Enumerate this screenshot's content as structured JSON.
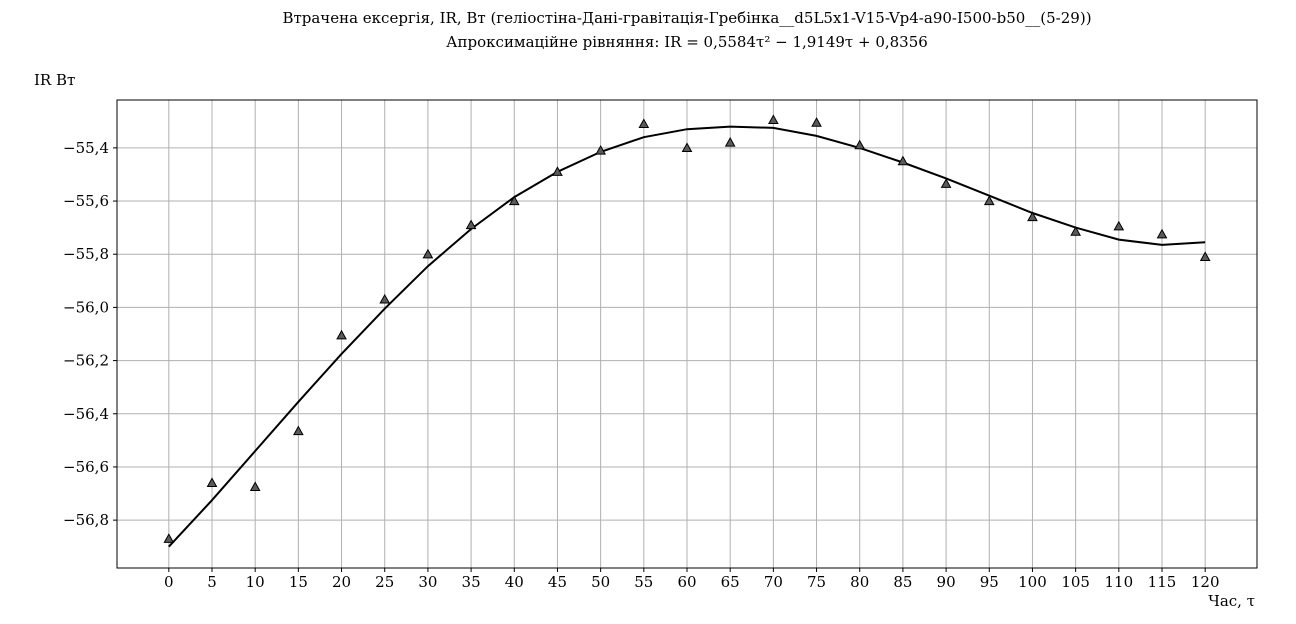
{
  "chart_data": {
    "type": "scatter",
    "title": "Втрачена ексергія, IR, Вт (геліостіна-Дані-гравітація-Гребінка__d5L5x1-V15-Vp4-a90-I500-b50__(5-29))",
    "subtitle": "Апроксимаційне рівняння: IR = 0,5584τ² − 1,9149τ + 0,8356",
    "ylabel": "IR Вт",
    "xlabel": "Час, τ",
    "x_ticks": [
      0,
      5,
      10,
      15,
      20,
      25,
      30,
      35,
      40,
      45,
      50,
      55,
      60,
      65,
      70,
      75,
      80,
      85,
      90,
      95,
      100,
      105,
      110,
      115,
      120
    ],
    "y_ticks": [
      "−55,4",
      "−55,6",
      "−55,8",
      "−56,0",
      "−56,2",
      "−56,4",
      "−56,6",
      "−56,8"
    ],
    "y_tick_values": [
      -55.4,
      -55.6,
      -55.8,
      -56.0,
      -56.2,
      -56.4,
      -56.6,
      -56.8
    ],
    "xlim": [
      -6,
      126
    ],
    "ylim": [
      -56.98,
      -55.22
    ],
    "grid": true,
    "series": [
      {
        "marker": "triangle",
        "x": [
          0,
          5,
          10,
          15,
          20,
          25,
          30,
          35,
          40,
          45,
          50,
          55,
          60,
          65,
          70,
          75,
          80,
          85,
          90,
          95,
          100,
          105,
          110,
          115,
          120
        ],
        "y": [
          -56.87,
          -56.66,
          -56.675,
          -56.465,
          -56.105,
          -55.97,
          -55.8,
          -55.69,
          -55.6,
          -55.49,
          -55.41,
          -55.31,
          -55.4,
          -55.38,
          -55.295,
          -55.305,
          -55.39,
          -55.45,
          -55.535,
          -55.6,
          -55.66,
          -55.715,
          -55.695,
          -55.725,
          -55.81
        ]
      },
      {
        "marker": "line",
        "x": [
          0,
          5,
          10,
          15,
          20,
          25,
          30,
          35,
          40,
          45,
          50,
          55,
          60,
          65,
          70,
          75,
          80,
          85,
          90,
          95,
          100,
          105,
          110,
          115,
          120
        ],
        "y": [
          -56.9,
          -56.725,
          -56.54,
          -56.355,
          -56.175,
          -56.005,
          -55.845,
          -55.705,
          -55.585,
          -55.49,
          -55.415,
          -55.36,
          -55.33,
          -55.32,
          -55.325,
          -55.355,
          -55.4,
          -55.455,
          -55.515,
          -55.58,
          -55.645,
          -55.7,
          -55.745,
          -55.765,
          -55.755
        ]
      }
    ],
    "colors": {
      "marker_fill": "#5a5a5a",
      "line": "#000000",
      "grid": "#b0b0b0"
    }
  }
}
